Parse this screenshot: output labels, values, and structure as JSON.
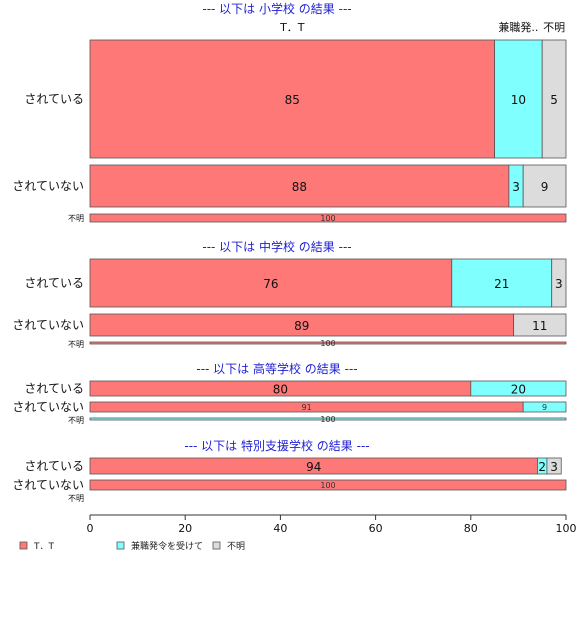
{
  "chart_data": {
    "type": "bar",
    "orientation": "horizontal",
    "stacked": "percent",
    "xlim": [
      0,
      100
    ],
    "xticks": [
      "0",
      "20",
      "40",
      "60",
      "80",
      "100"
    ],
    "colors": {
      "T．T": "#ff7878",
      "兼職発令を受けて": "#80ffff",
      "不明": "#dcdcdc"
    },
    "legend": {
      "placement": "bottom-left",
      "entries": [
        "T．T",
        "兼職発令を受けて",
        "不明"
      ]
    },
    "column_headers": [
      "T．T",
      "兼職発..",
      "不明"
    ],
    "panels": [
      {
        "title": "--- 以下は 小学校 の結果 ---",
        "rows": [
          {
            "label": "されている",
            "values": [
              85,
              10,
              5
            ],
            "labels": [
              "85",
              "10",
              "5"
            ]
          },
          {
            "label": "されていない",
            "values": [
              88,
              3,
              9
            ],
            "labels": [
              "88",
              "3",
              "9"
            ]
          },
          {
            "label": "不明",
            "values": [
              100,
              0,
              0
            ],
            "labels": [
              "100",
              "",
              ""
            ]
          }
        ]
      },
      {
        "title": "--- 以下は 中学校 の結果 ---",
        "rows": [
          {
            "label": "されている",
            "values": [
              76,
              21,
              3
            ],
            "labels": [
              "76",
              "21",
              "3"
            ]
          },
          {
            "label": "されていない",
            "values": [
              89,
              0,
              11
            ],
            "labels": [
              "89",
              "",
              "11"
            ]
          },
          {
            "label": "不明",
            "values": [
              100,
              0,
              0
            ],
            "labels": [
              "100",
              "",
              ""
            ]
          }
        ]
      },
      {
        "title": "--- 以下は 高等学校 の結果 ---",
        "rows": [
          {
            "label": "されている",
            "values": [
              80,
              20,
              0
            ],
            "labels": [
              "80",
              "20",
              ""
            ]
          },
          {
            "label": "されていない",
            "values": [
              91,
              9,
              0
            ],
            "labels": [
              "91",
              "9",
              ""
            ]
          },
          {
            "label": "不明",
            "values": [
              0,
              100,
              0
            ],
            "labels": [
              "",
              "100",
              ""
            ]
          }
        ]
      },
      {
        "title": "--- 以下は 特別支援学校 の結果 ---",
        "rows": [
          {
            "label": "されている",
            "values": [
              94,
              2,
              3
            ],
            "labels": [
              "94",
              "2",
              "3"
            ]
          },
          {
            "label": "されていない",
            "values": [
              100,
              0,
              0
            ],
            "labels": [
              "100",
              "",
              ""
            ]
          },
          {
            "label": "不明",
            "values": [
              0,
              0,
              0
            ],
            "labels": [
              "",
              "",
              ""
            ]
          }
        ]
      }
    ]
  }
}
